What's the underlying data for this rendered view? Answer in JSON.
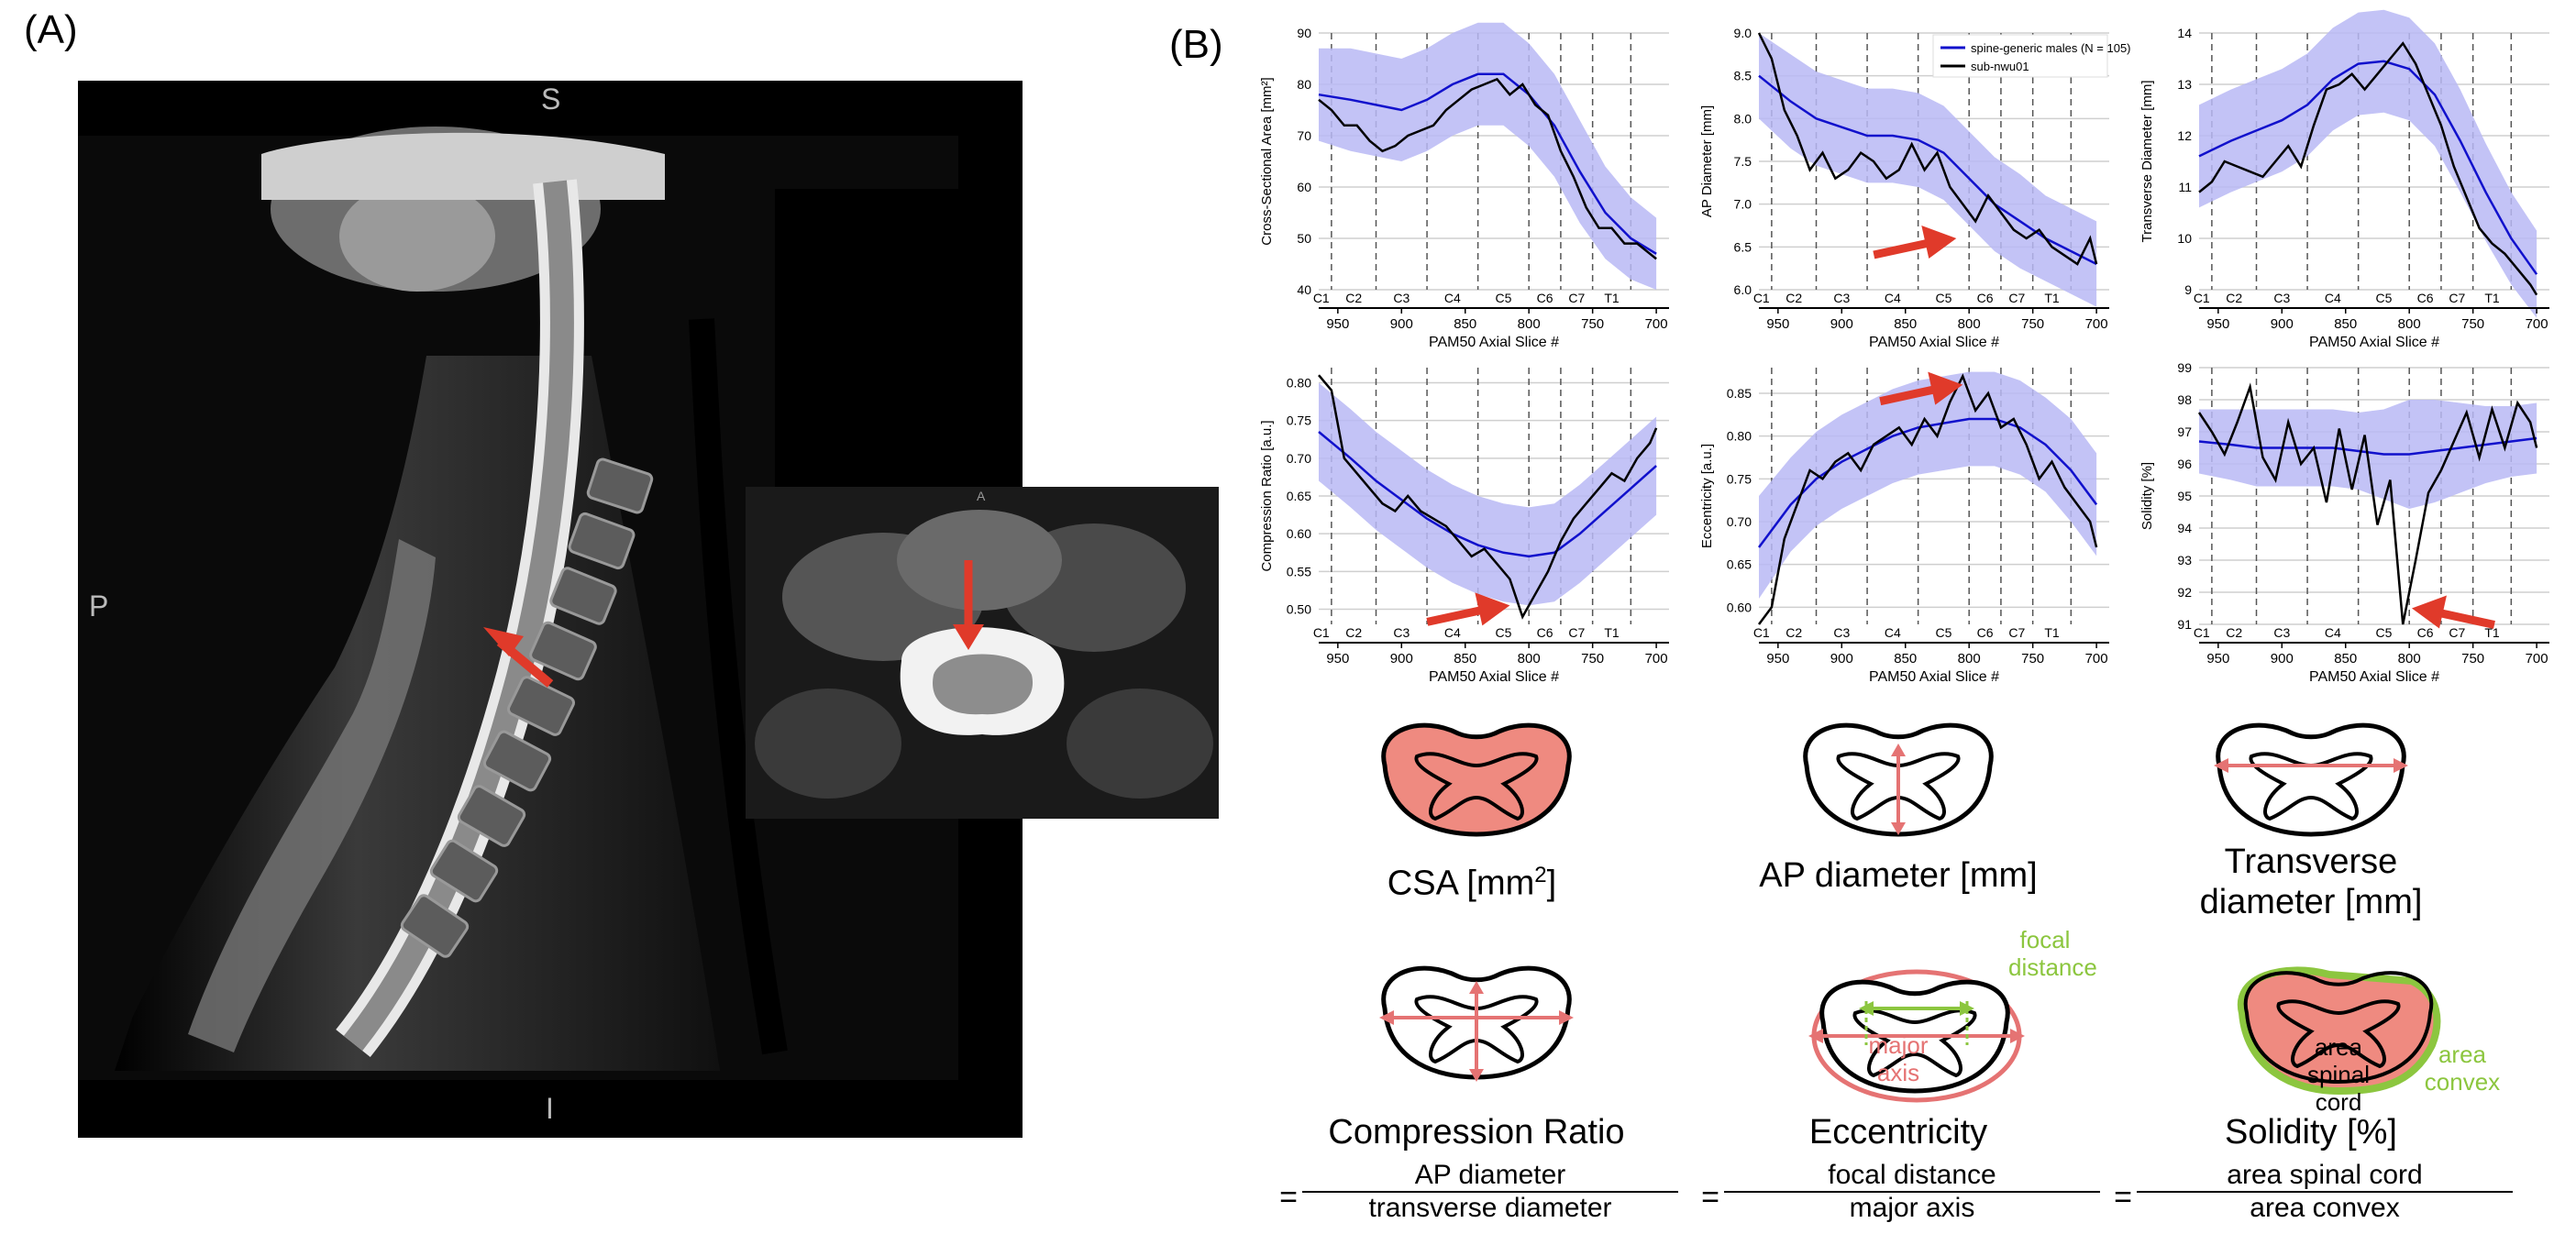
{
  "panels": {
    "a": "(A)",
    "b": "(B)"
  },
  "mri": {
    "orient_top": "S",
    "orient_left": "P",
    "orient_bottom": "I",
    "axial_orient_top": "A"
  },
  "colors": {
    "blue": "#1111cc",
    "band": "#b9b9f5",
    "black": "#000000",
    "arrow": "#e03a2a",
    "salmon": "#ef8a80",
    "salmon_stroke": "#e57373",
    "green": "#8cc63f"
  },
  "legend": {
    "males": "spine-generic males (N = 105)",
    "subject": "sub-nwu01"
  },
  "xaxis": {
    "label": "PAM50 Axial Slice #",
    "ticks": [
      950,
      900,
      850,
      800,
      750,
      700
    ],
    "xlim": [
      965,
      690
    ],
    "levels": [
      "C1",
      "C2",
      "C3",
      "C4",
      "C5",
      "C6",
      "C7",
      "T1"
    ],
    "level_boundaries": [
      955,
      920,
      880,
      840,
      800,
      775,
      750,
      720
    ]
  },
  "chart_data": [
    {
      "type": "line",
      "ylabel": "Cross-Sectional Area [mm²]",
      "ylim": [
        40,
        90
      ],
      "yticks": [
        40,
        50,
        60,
        70,
        80,
        90
      ],
      "series": [
        {
          "name": "spine-generic males (N = 105)",
          "x": [
            965,
            940,
            920,
            900,
            880,
            860,
            840,
            820,
            800,
            780,
            760,
            740,
            720,
            700
          ],
          "y": [
            78,
            77,
            76,
            75,
            77,
            80,
            82,
            82,
            78,
            72,
            63,
            55,
            50,
            47
          ],
          "band": [
            9,
            10,
            10,
            10,
            10,
            10,
            10,
            10,
            10,
            10,
            10,
            9,
            8,
            7
          ]
        },
        {
          "name": "sub-nwu01",
          "x": [
            965,
            955,
            945,
            935,
            925,
            915,
            905,
            895,
            885,
            875,
            865,
            855,
            845,
            835,
            825,
            815,
            805,
            795,
            785,
            775,
            765,
            755,
            745,
            735,
            725,
            715,
            705,
            700
          ],
          "y": [
            77,
            75,
            72,
            72,
            69,
            67,
            68,
            70,
            71,
            72,
            75,
            77,
            79,
            80,
            81,
            78,
            80,
            76,
            74,
            67,
            62,
            56,
            52,
            52,
            49,
            49,
            47,
            46
          ]
        }
      ],
      "arrow": null
    },
    {
      "type": "line",
      "ylabel": "AP Diameter [mm]",
      "ylim": [
        6.0,
        9.0
      ],
      "yticks": [
        6.0,
        6.5,
        7.0,
        7.5,
        8.0,
        8.5,
        9.0
      ],
      "series": [
        {
          "name": "spine-generic males (N = 105)",
          "x": [
            965,
            940,
            920,
            900,
            880,
            860,
            840,
            820,
            800,
            780,
            760,
            740,
            720,
            700
          ],
          "y": [
            8.5,
            8.2,
            8.0,
            7.9,
            7.8,
            7.8,
            7.75,
            7.6,
            7.3,
            7.0,
            6.8,
            6.6,
            6.45,
            6.3
          ],
          "band": [
            0.5,
            0.55,
            0.55,
            0.55,
            0.55,
            0.55,
            0.55,
            0.55,
            0.55,
            0.55,
            0.55,
            0.5,
            0.5,
            0.5
          ]
        },
        {
          "name": "sub-nwu01",
          "x": [
            965,
            955,
            945,
            935,
            925,
            915,
            905,
            895,
            885,
            875,
            865,
            855,
            845,
            835,
            825,
            815,
            805,
            795,
            785,
            775,
            765,
            755,
            745,
            735,
            725,
            715,
            705,
            700
          ],
          "y": [
            9.0,
            8.7,
            8.1,
            7.8,
            7.4,
            7.6,
            7.3,
            7.4,
            7.6,
            7.5,
            7.3,
            7.4,
            7.7,
            7.4,
            7.6,
            7.2,
            7.0,
            6.8,
            7.1,
            6.9,
            6.7,
            6.6,
            6.7,
            6.5,
            6.4,
            6.3,
            6.6,
            6.3
          ]
        }
      ],
      "arrow": {
        "x": 810,
        "y": 6.6,
        "dir": "from-left"
      }
    },
    {
      "type": "line",
      "ylabel": "Transverse Diameter [mm]",
      "ylim": [
        9,
        14
      ],
      "yticks": [
        9,
        10,
        11,
        12,
        13,
        14
      ],
      "series": [
        {
          "name": "spine-generic males (N = 105)",
          "x": [
            965,
            940,
            920,
            900,
            880,
            860,
            840,
            820,
            800,
            780,
            760,
            740,
            720,
            700
          ],
          "y": [
            11.6,
            11.9,
            12.1,
            12.3,
            12.6,
            13.1,
            13.4,
            13.45,
            13.3,
            12.8,
            11.9,
            10.9,
            10.0,
            9.3
          ],
          "band": [
            1.0,
            1.0,
            1.0,
            1.0,
            1.0,
            1.0,
            1.0,
            1.0,
            1.0,
            1.0,
            1.0,
            0.95,
            0.9,
            0.85
          ]
        },
        {
          "name": "sub-nwu01",
          "x": [
            965,
            955,
            945,
            935,
            925,
            915,
            905,
            895,
            885,
            875,
            865,
            855,
            845,
            835,
            825,
            815,
            805,
            795,
            785,
            775,
            765,
            755,
            745,
            735,
            725,
            715,
            705,
            700
          ],
          "y": [
            10.9,
            11.1,
            11.5,
            11.4,
            11.3,
            11.2,
            11.5,
            11.8,
            11.4,
            12.2,
            12.9,
            13.0,
            13.2,
            12.9,
            13.2,
            13.5,
            13.8,
            13.4,
            12.8,
            12.2,
            11.4,
            10.8,
            10.2,
            9.9,
            9.7,
            9.4,
            9.1,
            8.9
          ]
        }
      ],
      "arrow": null
    },
    {
      "type": "line",
      "ylabel": "Compression Ratio [a.u.]",
      "ylim": [
        0.48,
        0.82
      ],
      "yticks": [
        0.5,
        0.55,
        0.6,
        0.65,
        0.7,
        0.75,
        0.8
      ],
      "series": [
        {
          "name": "spine-generic males (N = 105)",
          "x": [
            965,
            940,
            920,
            900,
            880,
            860,
            840,
            820,
            800,
            780,
            760,
            740,
            720,
            700
          ],
          "y": [
            0.735,
            0.7,
            0.67,
            0.645,
            0.62,
            0.6,
            0.585,
            0.575,
            0.57,
            0.575,
            0.6,
            0.63,
            0.66,
            0.69
          ],
          "band": [
            0.065,
            0.065,
            0.065,
            0.065,
            0.065,
            0.065,
            0.065,
            0.065,
            0.065,
            0.065,
            0.065,
            0.065,
            0.065,
            0.065
          ]
        },
        {
          "name": "sub-nwu01",
          "x": [
            965,
            955,
            945,
            935,
            925,
            915,
            905,
            895,
            885,
            875,
            865,
            855,
            845,
            835,
            825,
            815,
            805,
            795,
            785,
            775,
            765,
            755,
            745,
            735,
            725,
            715,
            705,
            700
          ],
          "y": [
            0.81,
            0.79,
            0.7,
            0.68,
            0.66,
            0.64,
            0.63,
            0.65,
            0.63,
            0.62,
            0.61,
            0.59,
            0.57,
            0.58,
            0.56,
            0.54,
            0.49,
            0.52,
            0.55,
            0.59,
            0.62,
            0.64,
            0.66,
            0.68,
            0.67,
            0.7,
            0.72,
            0.74
          ]
        }
      ],
      "arrow": {
        "x": 815,
        "y": 0.505,
        "dir": "from-left"
      }
    },
    {
      "type": "line",
      "ylabel": "Eccentricity [a.u.]",
      "ylim": [
        0.58,
        0.88
      ],
      "yticks": [
        0.6,
        0.65,
        0.7,
        0.75,
        0.8,
        0.85
      ],
      "series": [
        {
          "name": "spine-generic males (N = 105)",
          "x": [
            965,
            940,
            920,
            900,
            880,
            860,
            840,
            820,
            800,
            780,
            760,
            740,
            720,
            700
          ],
          "y": [
            0.67,
            0.72,
            0.75,
            0.77,
            0.785,
            0.8,
            0.81,
            0.815,
            0.82,
            0.82,
            0.81,
            0.79,
            0.76,
            0.72
          ],
          "band": [
            0.06,
            0.055,
            0.055,
            0.055,
            0.055,
            0.055,
            0.055,
            0.055,
            0.055,
            0.055,
            0.055,
            0.055,
            0.06,
            0.06
          ]
        },
        {
          "name": "sub-nwu01",
          "x": [
            965,
            955,
            945,
            935,
            925,
            915,
            905,
            895,
            885,
            875,
            865,
            855,
            845,
            835,
            825,
            815,
            805,
            795,
            785,
            775,
            765,
            755,
            745,
            735,
            725,
            715,
            705,
            700
          ],
          "y": [
            0.58,
            0.6,
            0.68,
            0.72,
            0.76,
            0.75,
            0.77,
            0.78,
            0.76,
            0.79,
            0.8,
            0.81,
            0.79,
            0.82,
            0.8,
            0.84,
            0.87,
            0.83,
            0.85,
            0.81,
            0.82,
            0.79,
            0.75,
            0.77,
            0.74,
            0.72,
            0.7,
            0.67
          ]
        }
      ],
      "arrow": {
        "x": 805,
        "y": 0.86,
        "dir": "from-left"
      }
    },
    {
      "type": "line",
      "ylabel": "Solidity [%]",
      "ylim": [
        91,
        99
      ],
      "yticks": [
        91,
        92,
        93,
        94,
        95,
        96,
        97,
        98,
        99
      ],
      "series": [
        {
          "name": "spine-generic males (N = 105)",
          "x": [
            965,
            940,
            920,
            900,
            880,
            860,
            840,
            820,
            800,
            780,
            760,
            740,
            720,
            700
          ],
          "y": [
            96.7,
            96.6,
            96.5,
            96.5,
            96.5,
            96.5,
            96.4,
            96.3,
            96.3,
            96.4,
            96.5,
            96.6,
            96.7,
            96.8
          ],
          "band": [
            1.0,
            1.1,
            1.2,
            1.2,
            1.2,
            1.2,
            1.2,
            1.4,
            1.7,
            1.6,
            1.4,
            1.2,
            1.1,
            1.1
          ]
        },
        {
          "name": "sub-nwu01",
          "x": [
            965,
            955,
            945,
            935,
            925,
            915,
            905,
            895,
            885,
            875,
            865,
            855,
            845,
            835,
            825,
            815,
            805,
            795,
            785,
            775,
            765,
            755,
            745,
            735,
            725,
            715,
            705,
            700
          ],
          "y": [
            97.6,
            97.0,
            96.3,
            97.3,
            98.4,
            96.2,
            95.5,
            97.3,
            96.0,
            96.5,
            94.8,
            97.1,
            95.2,
            96.9,
            94.1,
            95.5,
            91.0,
            93.0,
            95.1,
            95.8,
            96.7,
            97.6,
            96.2,
            97.7,
            96.5,
            97.9,
            97.3,
            96.5
          ]
        }
      ],
      "arrow": {
        "x": 798,
        "y": 91.5,
        "dir": "from-right"
      }
    }
  ],
  "metrics": [
    {
      "caption_main": "CSA [mm",
      "caption_sup": "2",
      "caption_end": "]"
    },
    {
      "caption": "AP diameter [mm]"
    },
    {
      "caption_l1": "Transverse",
      "caption_l2": "diameter [mm]"
    },
    {
      "caption": "Compression Ratio",
      "num": "AP diameter",
      "den": "transverse diameter"
    },
    {
      "caption": "Eccentricity",
      "num": "focal distance",
      "den": "major axis",
      "label_focal_1": "focal",
      "label_focal_2": "distance",
      "label_major_1": "major",
      "label_major_2": "axis"
    },
    {
      "caption": "Solidity [%]",
      "num": "area spinal cord",
      "den": "area convex",
      "label_area_1": "area",
      "label_area_2": "spinal cord",
      "label_convex_1": "area",
      "label_convex_2": "convex"
    }
  ],
  "equals": "="
}
